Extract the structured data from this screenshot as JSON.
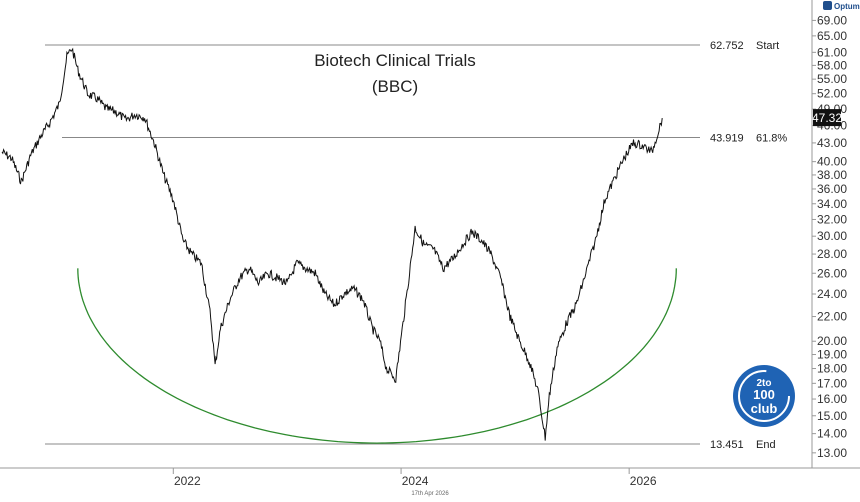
{
  "chart_data": {
    "type": "line",
    "title": "Biotech Clinical Trials",
    "subtitle": "(BBC)",
    "y_scale": "log",
    "ylim": [
      12.5,
      71
    ],
    "xlim": [
      "2020-07-01",
      "2026-07-15"
    ],
    "grid": false,
    "x_tick_labels": [
      "2022",
      "2024",
      "2026"
    ],
    "x_ticks": [
      "2022-01-01",
      "2024-01-01",
      "2026-01-01"
    ],
    "y_ticks": [
      13,
      14,
      15,
      16,
      17,
      18,
      19,
      20,
      22,
      24,
      26,
      28,
      30,
      32,
      34,
      36,
      38,
      40,
      43,
      46,
      49,
      52,
      55,
      58,
      61,
      65,
      69
    ],
    "y_tick_labels": [
      "13.00",
      "14.00",
      "15.00",
      "16.00",
      "17.00",
      "18.00",
      "19.00",
      "20.00",
      "22.00",
      "24.00",
      "26.00",
      "28.00",
      "30.00",
      "32.00",
      "34.00",
      "36.00",
      "38.00",
      "40.00",
      "43.00",
      "46.00",
      "49.00",
      "52.00",
      "55.00",
      "58.00",
      "61.00",
      "65.00",
      "69.00"
    ],
    "last_value": 47.32,
    "last_value_label": "47.32",
    "series": [
      {
        "values_date": [
          "2020-07-01",
          "2020-08-01",
          "2020-09-01",
          "2020-10-01",
          "2020-11-01",
          "2020-12-01",
          "2021-01-01",
          "2021-01-25",
          "2021-02-10",
          "2021-03-01",
          "2021-04-01",
          "2021-05-01",
          "2021-06-01",
          "2021-07-01",
          "2021-08-01",
          "2021-09-01",
          "2021-10-01",
          "2021-11-01",
          "2021-12-01",
          "2022-01-01",
          "2022-02-01",
          "2022-03-01",
          "2022-04-01",
          "2022-05-01",
          "2022-05-15",
          "2022-06-01",
          "2022-07-01",
          "2022-08-01",
          "2022-09-01",
          "2022-10-01",
          "2022-11-01",
          "2022-12-01",
          "2023-01-01",
          "2023-02-01",
          "2023-03-01",
          "2023-04-01",
          "2023-05-01",
          "2023-06-01",
          "2023-07-01",
          "2023-08-01",
          "2023-09-01",
          "2023-10-01",
          "2023-10-25",
          "2023-11-15",
          "2023-12-15",
          "2024-01-15",
          "2024-02-15",
          "2024-03-15",
          "2024-04-15",
          "2024-05-15",
          "2024-06-15",
          "2024-07-15",
          "2024-08-15",
          "2024-09-15",
          "2024-10-15",
          "2024-11-15",
          "2024-12-15",
          "2025-01-15",
          "2025-02-15",
          "2025-03-15",
          "2025-04-07",
          "2025-04-20",
          "2025-05-15",
          "2025-06-15",
          "2025-07-15",
          "2025-08-15",
          "2025-09-15",
          "2025-10-15",
          "2025-11-15",
          "2025-12-15",
          "2026-01-15",
          "2026-02-15",
          "2026-03-15",
          "2026-04-17"
        ],
        "values": [
          41.5,
          40.5,
          37.0,
          41.0,
          44.0,
          46.5,
          50.0,
          60.0,
          62.0,
          57.0,
          52.0,
          51.0,
          49.0,
          48.5,
          47.0,
          48.0,
          47.5,
          43.0,
          38.0,
          34.5,
          29.5,
          28.0,
          27.0,
          22.0,
          18.2,
          21.0,
          23.5,
          25.5,
          26.5,
          25.0,
          26.0,
          25.5,
          25.0,
          27.0,
          26.5,
          26.0,
          24.0,
          23.0,
          24.0,
          24.5,
          23.5,
          21.0,
          20.0,
          18.0,
          17.3,
          23.0,
          31.0,
          29.0,
          28.5,
          26.5,
          27.5,
          29.0,
          30.5,
          29.5,
          28.0,
          25.5,
          22.0,
          20.0,
          18.5,
          16.5,
          13.8,
          16.2,
          19.5,
          21.5,
          23.0,
          26.0,
          29.5,
          34.5,
          37.5,
          40.5,
          43.0,
          42.5,
          41.5,
          47.32
        ]
      }
    ],
    "fib_levels": [
      {
        "value": 62.752,
        "value_label": "62.752",
        "label": "Start"
      },
      {
        "value": 43.919,
        "value_label": "43.919",
        "label": "61.8%"
      },
      {
        "value": 13.451,
        "value_label": "13.451",
        "label": "End"
      }
    ],
    "arc": {
      "start_date": "2021-03-01",
      "end_date": "2026-06-01",
      "top_value": 26.5,
      "bottom_value": 13.5,
      "color": "#2e8b2e"
    },
    "colors": {
      "price": "#111111",
      "fib_line": "#888888",
      "arc": "#2e8b2e",
      "axis": "#999999",
      "last_badge": "#111111"
    }
  },
  "footer": {
    "date_stamp": "17th Apr 2026"
  },
  "brand": {
    "name": "Optuma"
  },
  "badge": {
    "line1": "2to",
    "line2": "100",
    "line3": "club",
    "color": "#1f63b4"
  }
}
